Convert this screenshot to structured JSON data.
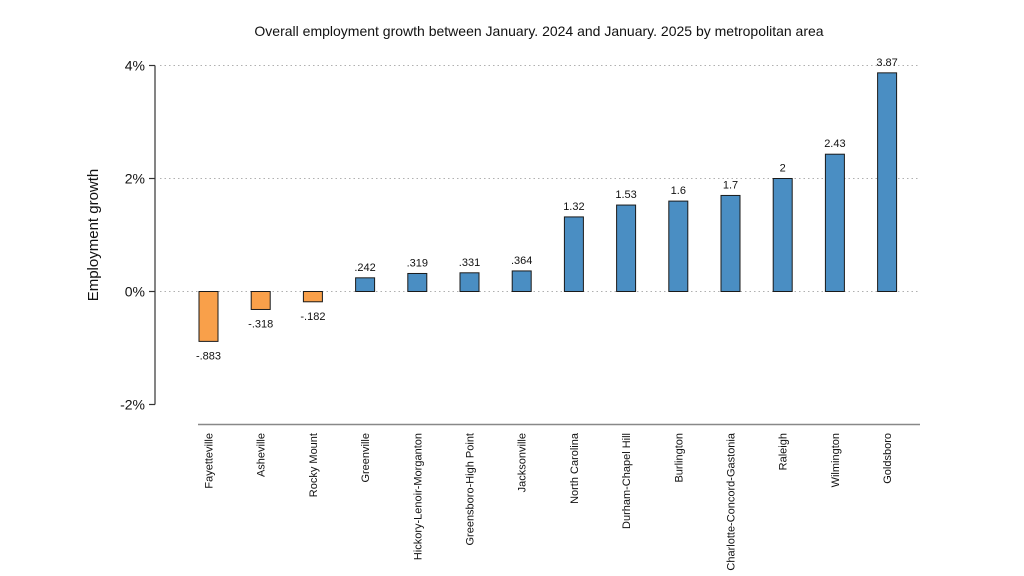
{
  "chart_data": {
    "type": "bar",
    "title": "Overall employment growth between January. 2024 and January. 2025 by metropolitan area",
    "xlabel": "",
    "ylabel": "Employment growth",
    "ylim": [
      -2.2,
      4.2
    ],
    "yticks": [
      -2,
      0,
      2,
      4
    ],
    "ytick_labels": [
      "-2%",
      "0%",
      "2%",
      "4%"
    ],
    "grid": "horizontal dotted",
    "legend": "none",
    "categories": [
      "Fayetteville",
      "Asheville",
      "Rocky Mount",
      "Greenville",
      "Hickory-Lenoir-Morganton",
      "Greensboro-High Point",
      "Jacksonville",
      "North Carolina",
      "Durham-Chapel Hill",
      "Burlington",
      "Charlotte-Concord-Gastonia",
      "Raleigh",
      "Wilmington",
      "Goldsboro"
    ],
    "values": [
      -0.883,
      -0.318,
      -0.182,
      0.242,
      0.319,
      0.331,
      0.364,
      1.32,
      1.53,
      1.6,
      1.7,
      2,
      2.43,
      3.87
    ],
    "data_labels": [
      "-.883",
      "-.318",
      "-.182",
      ".242",
      ".319",
      ".331",
      ".364",
      "1.32",
      "1.53",
      "1.6",
      "1.7",
      "2",
      "2.43",
      "3.87"
    ],
    "colors": {
      "negative": "#f9a04a",
      "positive": "#4a8ec3",
      "bar_edge": "#1a1a1a",
      "grid": "#b0b0b0",
      "axis": "#333333"
    }
  }
}
